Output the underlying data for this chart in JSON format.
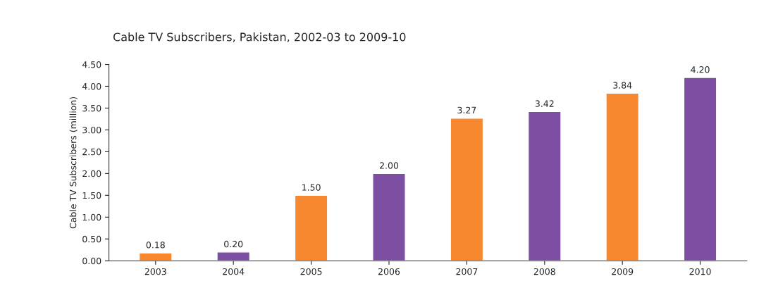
{
  "chart_data": {
    "type": "bar",
    "title": "Cable TV Subscribers, Pakistan, 2002-03 to 2009-10",
    "ylabel": "Cable TV Subscribers (million)",
    "categories": [
      "2003",
      "2004",
      "2005",
      "2006",
      "2007",
      "2008",
      "2009",
      "2010"
    ],
    "values": [
      0.18,
      0.2,
      1.5,
      2.0,
      3.27,
      3.42,
      3.84,
      4.2
    ],
    "colors": [
      "#f7882f",
      "#7d4fa2",
      "#f7882f",
      "#7d4fa2",
      "#f7882f",
      "#7d4fa2",
      "#f7882f",
      "#7d4fa2"
    ],
    "value_labels": [
      "0.18",
      "0.20",
      "1.50",
      "2.00",
      "3.27",
      "3.42",
      "3.84",
      "4.20"
    ],
    "ylim": [
      0,
      4.5
    ],
    "yticks": [
      {
        "value": 0,
        "label": "0.00"
      },
      {
        "value": 0.5,
        "label": "0.50"
      },
      {
        "value": 1,
        "label": "1.00"
      },
      {
        "value": 1.5,
        "label": "1.50"
      },
      {
        "value": 2,
        "label": "2.00"
      },
      {
        "value": 2.5,
        "label": "2.50"
      },
      {
        "value": 3,
        "label": "3.00"
      },
      {
        "value": 3.5,
        "label": "3.50"
      },
      {
        "value": 4,
        "label": "4.00"
      },
      {
        "value": 4.5,
        "label": "4.50"
      }
    ],
    "grid": false,
    "legend": false
  }
}
